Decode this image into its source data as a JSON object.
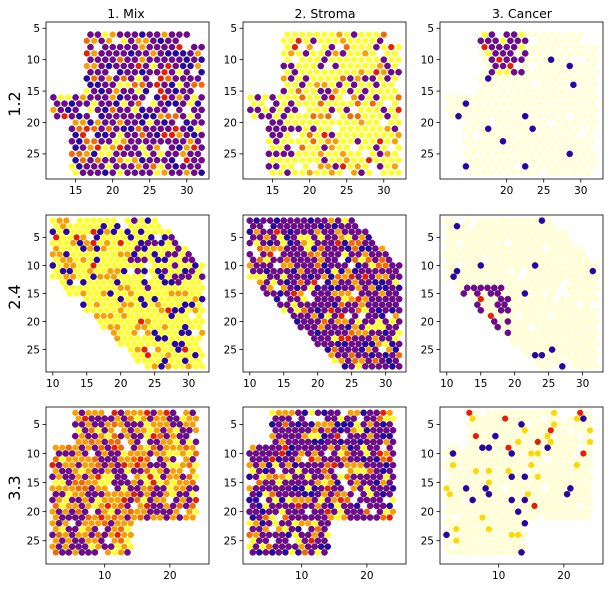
{
  "figure": {
    "column_titles": [
      "1. Mix",
      "2. Stroma",
      "3. Cancer"
    ],
    "row_labels": [
      "1.2",
      "2.4",
      "3.3"
    ]
  },
  "colors": {
    "colormap": [
      "#000000",
      "#2a00b4",
      "#7a009e",
      "#e61f00",
      "#f26a00",
      "#fb9e00",
      "#ffd800",
      "#ffff2a",
      "#ffff9c"
    ],
    "pale_alpha": 0.45,
    "edge": "#3d3d3d"
  },
  "chart_data": [
    {
      "type": "scatter",
      "row_label": "1.2",
      "column_title": "1. Mix",
      "xlim": [
        11,
        33
      ],
      "ylim": [
        29,
        4
      ],
      "xticks": [
        15,
        20,
        25,
        30
      ],
      "yticks": [
        5,
        10,
        15,
        20,
        25
      ],
      "grid": false,
      "legend": "none",
      "region": {
        "x": [
          12,
          32
        ],
        "y": [
          6,
          28
        ],
        "shape": "rect-tl-cut"
      },
      "profile": "dense-mix",
      "seed": 11
    },
    {
      "type": "scatter",
      "row_label": "1.2",
      "column_title": "2. Stroma",
      "xlim": [
        11,
        33
      ],
      "ylim": [
        29,
        4
      ],
      "xticks": [
        15,
        20,
        25,
        30
      ],
      "yticks": [
        5,
        10,
        15,
        20,
        25
      ],
      "grid": false,
      "legend": "none",
      "region": {
        "x": [
          12,
          32
        ],
        "y": [
          6,
          28
        ],
        "shape": "rect-tl-cut"
      },
      "profile": "stroma-sparse",
      "seed": 23
    },
    {
      "type": "scatter",
      "row_label": "1.2",
      "column_title": "3. Cancer",
      "xlim": [
        11,
        33
      ],
      "ylim": [
        29,
        4
      ],
      "xticks": [
        20,
        25,
        30
      ],
      "yticks": [
        5,
        10,
        15,
        20,
        25
      ],
      "grid": false,
      "legend": "none",
      "region": {
        "x": [
          12,
          32
        ],
        "y": [
          6,
          28
        ],
        "shape": "rect-tl-cut"
      },
      "profile": "cancer-top",
      "seed": 37
    },
    {
      "type": "scatter",
      "row_label": "2.4",
      "column_title": "1. Mix",
      "xlim": [
        9,
        33
      ],
      "ylim": [
        29,
        1
      ],
      "xticks": [
        10,
        15,
        20,
        25,
        30
      ],
      "yticks": [
        5,
        10,
        15,
        20,
        25
      ],
      "grid": false,
      "legend": "none",
      "region": {
        "x": [
          10,
          32
        ],
        "y": [
          2,
          28
        ],
        "shape": "diagonal"
      },
      "profile": "yellow-mix",
      "seed": 41
    },
    {
      "type": "scatter",
      "row_label": "2.4",
      "column_title": "2. Stroma",
      "xlim": [
        9,
        33
      ],
      "ylim": [
        29,
        1
      ],
      "xticks": [
        10,
        15,
        20,
        25,
        30
      ],
      "yticks": [
        5,
        10,
        15,
        20,
        25
      ],
      "grid": false,
      "legend": "none",
      "region": {
        "x": [
          10,
          32
        ],
        "y": [
          2,
          28
        ],
        "shape": "diagonal"
      },
      "profile": "dense-mix",
      "seed": 53
    },
    {
      "type": "scatter",
      "row_label": "2.4",
      "column_title": "3. Cancer",
      "xlim": [
        9,
        33
      ],
      "ylim": [
        29,
        1
      ],
      "xticks": [
        10,
        15,
        20,
        25,
        30
      ],
      "yticks": [
        5,
        10,
        15,
        20,
        25
      ],
      "grid": false,
      "legend": "none",
      "region": {
        "x": [
          10,
          32
        ],
        "y": [
          2,
          28
        ],
        "shape": "diagonal"
      },
      "profile": "cancer-left",
      "seed": 67
    },
    {
      "type": "scatter",
      "row_label": "3.3",
      "column_title": "1. Mix",
      "xlim": [
        1,
        26
      ],
      "ylim": [
        29,
        2
      ],
      "xticks": [
        10,
        20
      ],
      "yticks": [
        5,
        10,
        15,
        20,
        25
      ],
      "grid": false,
      "legend": "none",
      "region": {
        "x": [
          2,
          24
        ],
        "y": [
          3,
          27
        ],
        "shape": "diagonal-inv"
      },
      "profile": "dense-orange",
      "seed": 71
    },
    {
      "type": "scatter",
      "row_label": "3.3",
      "column_title": "2. Stroma",
      "xlim": [
        1,
        26
      ],
      "ylim": [
        29,
        2
      ],
      "xticks": [
        10,
        20
      ],
      "yticks": [
        5,
        10,
        15,
        20,
        25
      ],
      "grid": false,
      "legend": "none",
      "region": {
        "x": [
          2,
          24
        ],
        "y": [
          3,
          27
        ],
        "shape": "diagonal-inv"
      },
      "profile": "dense-mix",
      "seed": 83
    },
    {
      "type": "scatter",
      "row_label": "3.3",
      "column_title": "3. Cancer",
      "xlim": [
        1,
        26
      ],
      "ylim": [
        29,
        2
      ],
      "xticks": [
        10,
        20
      ],
      "yticks": [
        5,
        10,
        15,
        20,
        25
      ],
      "grid": false,
      "legend": "none",
      "region": {
        "x": [
          2,
          24
        ],
        "y": [
          3,
          27
        ],
        "shape": "diagonal-inv"
      },
      "profile": "pale-sparse",
      "seed": 97
    }
  ]
}
